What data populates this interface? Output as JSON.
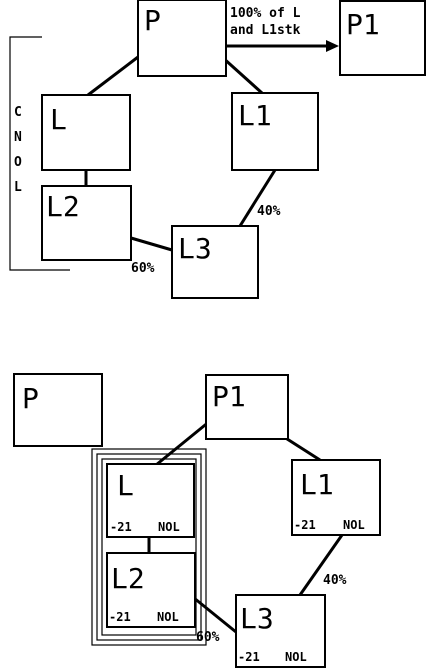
{
  "top_diagram": {
    "boxes": {
      "P": "P",
      "P1": "P1",
      "L": "L",
      "L1": "L1",
      "L2": "L2",
      "L3": "L3"
    },
    "arrow_label": [
      "100% of L",
      "and L1stk"
    ],
    "edge_labels": {
      "l1_l3": "40%",
      "l2_l3": "60%"
    },
    "bracket_letters": [
      "C",
      "N",
      "O",
      "L"
    ]
  },
  "bottom_diagram": {
    "boxes": {
      "P": "P",
      "P1": "P1",
      "L": "L",
      "L1": "L1",
      "L2": "L2",
      "L3": "L3"
    },
    "box_values": {
      "L": "-21",
      "L1": "-21",
      "L2": "-21",
      "L3": "-21"
    },
    "box_tags": {
      "L": "NOL",
      "L1": "NOL",
      "L2": "NOL",
      "L3": "NOL"
    },
    "edge_labels": {
      "l1_l3": "40%",
      "l2_l3": "60%"
    }
  }
}
